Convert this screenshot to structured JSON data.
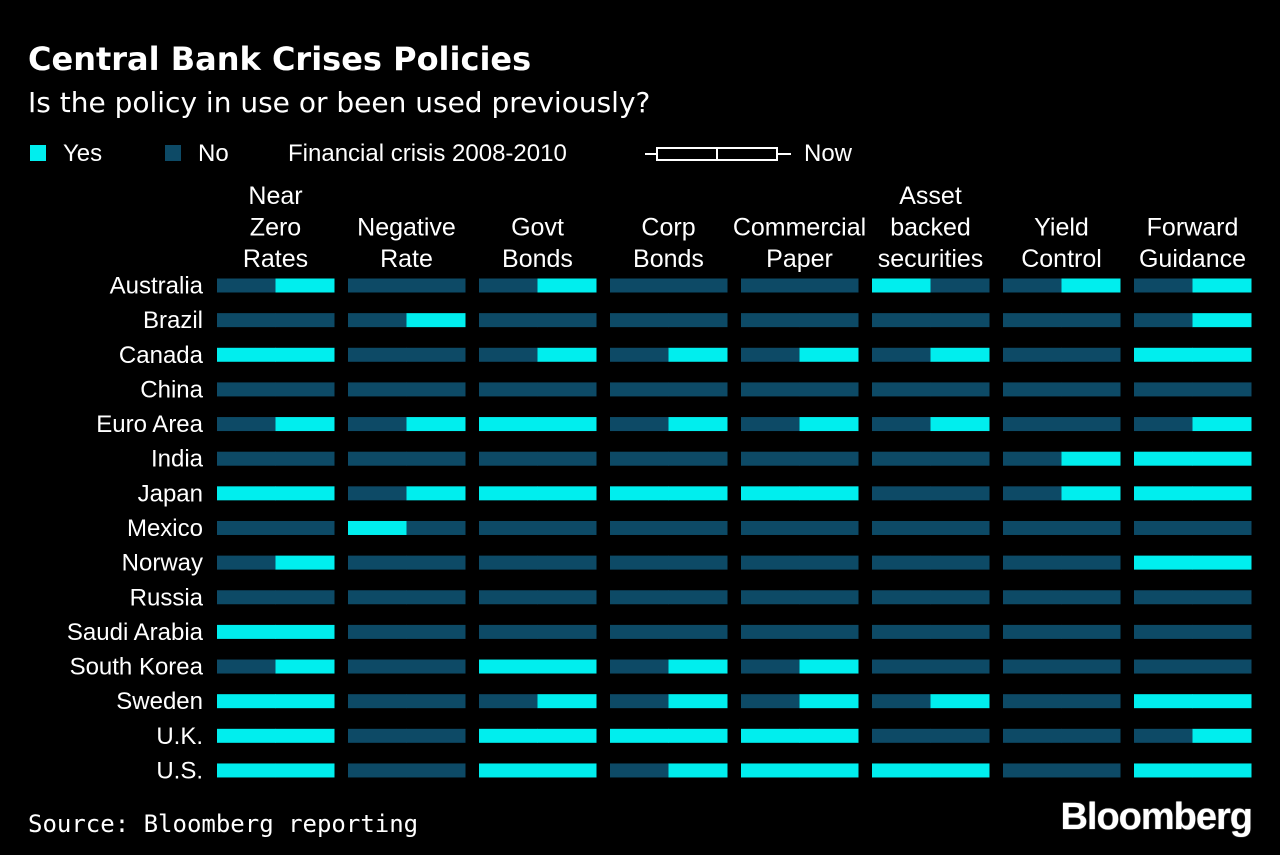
{
  "chart_data": {
    "type": "table",
    "title": "Central Bank Crises Policies",
    "subtitle": "Is the policy in use or been used previously?",
    "legend": {
      "yes_label": "Yes",
      "no_label": "No",
      "period_label": "Financial crisis 2008-2010",
      "now_label": "Now"
    },
    "colors": {
      "yes": "#00eeee",
      "no": "#0d4a66"
    },
    "periods": [
      "Financial crisis 2008-2010",
      "Now"
    ],
    "columns": [
      {
        "key": "near_zero",
        "label": [
          "Near",
          "Zero",
          "Rates"
        ]
      },
      {
        "key": "negative",
        "label": [
          "Negative",
          "Rate"
        ]
      },
      {
        "key": "govt",
        "label": [
          "Govt",
          "Bonds"
        ]
      },
      {
        "key": "corp",
        "label": [
          "Corp",
          "Bonds"
        ]
      },
      {
        "key": "cp",
        "label": [
          "Commercial",
          "Paper"
        ]
      },
      {
        "key": "abs",
        "label": [
          "Asset",
          "backed",
          "securities"
        ]
      },
      {
        "key": "ycc",
        "label": [
          "Yield",
          "Control"
        ]
      },
      {
        "key": "fg",
        "label": [
          "Forward",
          "Guidance"
        ]
      }
    ],
    "rows": [
      {
        "country": "Australia",
        "values": [
          [
            0,
            1
          ],
          [
            0,
            0
          ],
          [
            0,
            1
          ],
          [
            0,
            0
          ],
          [
            0,
            0
          ],
          [
            1,
            0
          ],
          [
            0,
            1
          ],
          [
            0,
            1
          ]
        ]
      },
      {
        "country": "Brazil",
        "values": [
          [
            0,
            0
          ],
          [
            0,
            1
          ],
          [
            0,
            0
          ],
          [
            0,
            0
          ],
          [
            0,
            0
          ],
          [
            0,
            0
          ],
          [
            0,
            0
          ],
          [
            0,
            1
          ]
        ]
      },
      {
        "country": "Canada",
        "values": [
          [
            1,
            1
          ],
          [
            0,
            0
          ],
          [
            0,
            1
          ],
          [
            0,
            1
          ],
          [
            0,
            1
          ],
          [
            0,
            1
          ],
          [
            0,
            0
          ],
          [
            1,
            1
          ]
        ]
      },
      {
        "country": "China",
        "values": [
          [
            0,
            0
          ],
          [
            0,
            0
          ],
          [
            0,
            0
          ],
          [
            0,
            0
          ],
          [
            0,
            0
          ],
          [
            0,
            0
          ],
          [
            0,
            0
          ],
          [
            0,
            0
          ]
        ]
      },
      {
        "country": "Euro Area",
        "values": [
          [
            0,
            1
          ],
          [
            0,
            1
          ],
          [
            1,
            1
          ],
          [
            0,
            1
          ],
          [
            0,
            1
          ],
          [
            0,
            1
          ],
          [
            0,
            0
          ],
          [
            0,
            1
          ]
        ]
      },
      {
        "country": "India",
        "values": [
          [
            0,
            0
          ],
          [
            0,
            0
          ],
          [
            0,
            0
          ],
          [
            0,
            0
          ],
          [
            0,
            0
          ],
          [
            0,
            0
          ],
          [
            0,
            1
          ],
          [
            1,
            1
          ]
        ]
      },
      {
        "country": "Japan",
        "values": [
          [
            1,
            1
          ],
          [
            0,
            1
          ],
          [
            1,
            1
          ],
          [
            1,
            1
          ],
          [
            1,
            1
          ],
          [
            0,
            0
          ],
          [
            0,
            1
          ],
          [
            1,
            1
          ]
        ]
      },
      {
        "country": "Mexico",
        "values": [
          [
            0,
            0
          ],
          [
            1,
            0
          ],
          [
            0,
            0
          ],
          [
            0,
            0
          ],
          [
            0,
            0
          ],
          [
            0,
            0
          ],
          [
            0,
            0
          ],
          [
            0,
            0
          ]
        ]
      },
      {
        "country": "Norway",
        "values": [
          [
            0,
            1
          ],
          [
            0,
            0
          ],
          [
            0,
            0
          ],
          [
            0,
            0
          ],
          [
            0,
            0
          ],
          [
            0,
            0
          ],
          [
            0,
            0
          ],
          [
            1,
            1
          ]
        ]
      },
      {
        "country": "Russia",
        "values": [
          [
            0,
            0
          ],
          [
            0,
            0
          ],
          [
            0,
            0
          ],
          [
            0,
            0
          ],
          [
            0,
            0
          ],
          [
            0,
            0
          ],
          [
            0,
            0
          ],
          [
            0,
            0
          ]
        ]
      },
      {
        "country": "Saudi Arabia",
        "values": [
          [
            1,
            1
          ],
          [
            0,
            0
          ],
          [
            0,
            0
          ],
          [
            0,
            0
          ],
          [
            0,
            0
          ],
          [
            0,
            0
          ],
          [
            0,
            0
          ],
          [
            0,
            0
          ]
        ]
      },
      {
        "country": "South Korea",
        "values": [
          [
            0,
            1
          ],
          [
            0,
            0
          ],
          [
            1,
            1
          ],
          [
            0,
            1
          ],
          [
            0,
            1
          ],
          [
            0,
            0
          ],
          [
            0,
            0
          ],
          [
            0,
            0
          ]
        ]
      },
      {
        "country": "Sweden",
        "values": [
          [
            1,
            1
          ],
          [
            0,
            0
          ],
          [
            0,
            1
          ],
          [
            0,
            1
          ],
          [
            0,
            1
          ],
          [
            0,
            1
          ],
          [
            0,
            0
          ],
          [
            1,
            1
          ]
        ]
      },
      {
        "country": "U.K.",
        "values": [
          [
            1,
            1
          ],
          [
            0,
            0
          ],
          [
            1,
            1
          ],
          [
            1,
            1
          ],
          [
            1,
            1
          ],
          [
            0,
            0
          ],
          [
            0,
            0
          ],
          [
            0,
            1
          ]
        ]
      },
      {
        "country": "U.S.",
        "values": [
          [
            1,
            1
          ],
          [
            0,
            0
          ],
          [
            1,
            1
          ],
          [
            0,
            1
          ],
          [
            1,
            1
          ],
          [
            1,
            1
          ],
          [
            0,
            0
          ],
          [
            1,
            1
          ]
        ]
      }
    ]
  },
  "source": "Source: Bloomberg reporting",
  "brand": "Bloomberg"
}
